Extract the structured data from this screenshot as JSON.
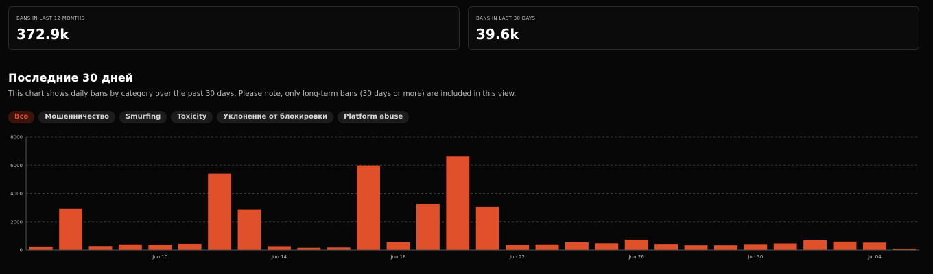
{
  "stats": [
    {
      "label": "BANS IN LAST 12 MONTHS",
      "value": "372.9k"
    },
    {
      "label": "BANS IN LAST 30 DAYS",
      "value": "39.6k"
    }
  ],
  "section": {
    "title": "Последние 30 дней",
    "description": "This chart shows daily bans by category over the past 30 days. Please note, only long-term bans (30 days or more) are included in this view."
  },
  "filters": [
    {
      "label": "Все",
      "active": true
    },
    {
      "label": "Мошенничество",
      "active": false
    },
    {
      "label": "Smurfing",
      "active": false
    },
    {
      "label": "Toxicity",
      "active": false
    },
    {
      "label": "Уклонение от блокировки",
      "active": false
    },
    {
      "label": "Platform abuse",
      "active": false
    }
  ],
  "colors": {
    "accent": "#e2532f",
    "bar": "#e0502a",
    "grid": "#3a3a3a"
  },
  "chart_data": {
    "type": "bar",
    "ylim": [
      0,
      8000
    ],
    "yticks": [
      0,
      2000,
      4000,
      6000,
      8000
    ],
    "categories": [
      "Jun 06",
      "Jun 07",
      "Jun 08",
      "Jun 09",
      "Jun 10",
      "Jun 11",
      "Jun 12",
      "Jun 13",
      "Jun 14",
      "Jun 15",
      "Jun 16",
      "Jun 17",
      "Jun 18",
      "Jun 19",
      "Jun 20",
      "Jun 21",
      "Jun 22",
      "Jun 23",
      "Jun 24",
      "Jun 25",
      "Jun 26",
      "Jun 27",
      "Jun 28",
      "Jun 29",
      "Jun 30",
      "Jul 01",
      "Jul 02",
      "Jul 03",
      "Jul 04",
      "Jul 05"
    ],
    "values": [
      250,
      2920,
      280,
      400,
      370,
      440,
      5400,
      2880,
      270,
      160,
      180,
      5980,
      540,
      3250,
      6630,
      3060,
      360,
      400,
      540,
      470,
      730,
      430,
      330,
      330,
      420,
      460,
      680,
      590,
      520,
      100
    ],
    "xtick_labels": [
      "Jun 10",
      "Jun 14",
      "Jun 18",
      "Jun 22",
      "Jun 26",
      "Jun 30",
      "Jul 04"
    ],
    "grid": true,
    "legend": "none"
  }
}
